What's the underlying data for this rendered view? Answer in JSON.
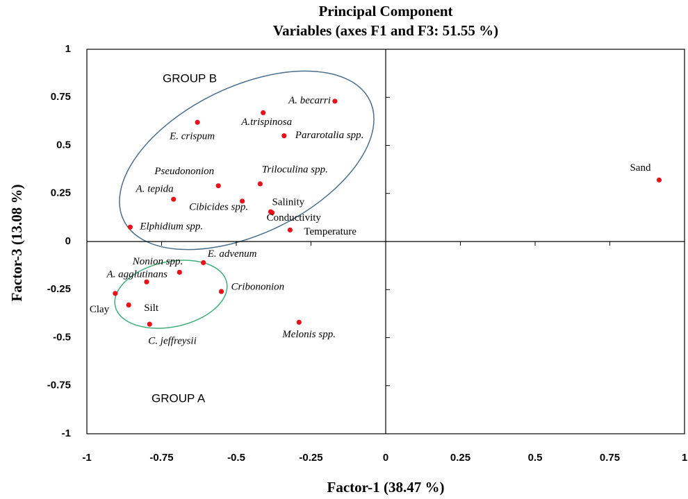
{
  "chart_data": {
    "type": "scatter",
    "title": "Principal Component",
    "subtitle": "Variables (axes F1 and F3: 51.55 %)",
    "x_label": "Factor-1 (38.47 %)",
    "y_label": "Factor-3  (13.08 %)",
    "annotations": [
      "GROUP B",
      "GROUP A"
    ],
    "color": "#e8121b",
    "xlim": [
      -1,
      1
    ],
    "ylim": [
      -1,
      1
    ],
    "xticks": [
      -1,
      -0.75,
      -0.5,
      -0.25,
      0,
      0.25,
      0.5,
      0.75,
      1
    ],
    "yticks": [
      -1,
      -0.75,
      -0.5,
      -0.25,
      0,
      0.25,
      0.5,
      0.75,
      1
    ],
    "points": [
      {
        "label": "A. becarri",
        "x": -0.17,
        "y": 0.73
      },
      {
        "label": "A.trispinosa",
        "x": -0.41,
        "y": 0.67
      },
      {
        "label": "E. crispum",
        "x": -0.63,
        "y": 0.62
      },
      {
        "label": "Pararotalia spp.",
        "x": -0.34,
        "y": 0.55
      },
      {
        "label": "Triloculina spp.",
        "x": -0.42,
        "y": 0.3
      },
      {
        "label": "Pseudononion",
        "x": -0.56,
        "y": 0.29
      },
      {
        "label": "A. tepida",
        "x": -0.71,
        "y": 0.22
      },
      {
        "label": "Cibicides spp.",
        "x": -0.48,
        "y": 0.21
      },
      {
        "label": "Salinity",
        "x": -0.385,
        "y": 0.155
      },
      {
        "label": "Conductivity",
        "x": -0.38,
        "y": 0.15
      },
      {
        "label": "Temperature",
        "x": -0.32,
        "y": 0.06
      },
      {
        "label": "Elphidium spp.",
        "x": -0.855,
        "y": 0.075
      },
      {
        "label": "E. advenum",
        "x": -0.61,
        "y": -0.11
      },
      {
        "label": "Nonion spp.",
        "x": -0.69,
        "y": -0.16
      },
      {
        "label": "A. agglutinans",
        "x": -0.8,
        "y": -0.21
      },
      {
        "label": "Cribononion",
        "x": -0.55,
        "y": -0.26
      },
      {
        "label": "Clay",
        "x": -0.905,
        "y": -0.27
      },
      {
        "label": "Silt",
        "x": -0.86,
        "y": -0.33
      },
      {
        "label": "C. jeffreysii",
        "x": -0.79,
        "y": -0.43
      },
      {
        "label": "Melonis spp.",
        "x": -0.29,
        "y": -0.42
      },
      {
        "label": "Sand",
        "x": 0.915,
        "y": 0.32
      }
    ]
  }
}
